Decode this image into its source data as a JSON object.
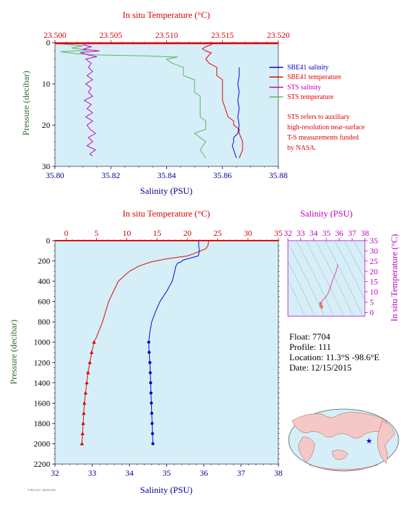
{
  "colors": {
    "plot_bg": "#d5eef8",
    "temp_axis": "#d40000",
    "salinity_axis": "#00008c",
    "pressure_axis": "#2f6b2f",
    "sbe_salinity": "#0000c8",
    "sbe_temperature": "#e00000",
    "sts_salinity": "#c000c0",
    "sts_temperature": "#5ab45a",
    "ts_axis": "#c000c0"
  },
  "chart_data": [
    {
      "type": "line",
      "panel": "near-surface",
      "top_axis": {
        "label": "In situ Temperature (°C)",
        "ticks": [
          "23.500",
          "23.505",
          "23.510",
          "23.515",
          "23.520"
        ],
        "range": [
          23.5,
          23.52
        ]
      },
      "bottom_axis": {
        "label": "Salinity (PSU)",
        "ticks": [
          "35.80",
          "35.82",
          "35.84",
          "35.86",
          "35.88"
        ],
        "range": [
          35.8,
          35.88
        ]
      },
      "y_axis": {
        "label": "Pressure (decibar)",
        "ticks": [
          "0",
          "10",
          "20",
          "30"
        ],
        "range": [
          0,
          30
        ],
        "inverted": true
      },
      "legend_position": "right",
      "series": [
        {
          "name": "SBE41 salinity",
          "axis": "salinity",
          "points": [
            [
              35.866,
              6
            ],
            [
              35.866,
              8
            ],
            [
              35.8655,
              10
            ],
            [
              35.866,
              12
            ],
            [
              35.8655,
              14
            ],
            [
              35.866,
              16
            ],
            [
              35.8655,
              18
            ],
            [
              35.866,
              20
            ],
            [
              35.8655,
              22
            ],
            [
              35.864,
              23
            ],
            [
              35.864,
              24
            ],
            [
              35.8635,
              25
            ],
            [
              35.864,
              26
            ],
            [
              35.8645,
              27
            ],
            [
              35.865,
              28
            ]
          ]
        },
        {
          "name": "SBE41 temperature",
          "axis": "temperature",
          "points": [
            [
              23.5141,
              0
            ],
            [
              23.5141,
              0.2
            ],
            [
              23.514,
              0.5
            ],
            [
              23.5135,
              1
            ],
            [
              23.5132,
              1.5
            ],
            [
              23.5135,
              2
            ],
            [
              23.514,
              2.5
            ],
            [
              23.5138,
              3
            ],
            [
              23.5135,
              4
            ],
            [
              23.5138,
              5
            ],
            [
              23.5145,
              6
            ],
            [
              23.5145,
              8
            ],
            [
              23.515,
              9
            ],
            [
              23.515,
              14
            ],
            [
              23.5155,
              18
            ],
            [
              23.516,
              19
            ],
            [
              23.516,
              20
            ],
            [
              23.5165,
              21
            ],
            [
              23.5165,
              22
            ],
            [
              23.5168,
              24
            ],
            [
              23.5168,
              26
            ],
            [
              23.5165,
              28
            ]
          ]
        },
        {
          "name": "STS salinity",
          "axis": "salinity",
          "points": [
            [
              35.81,
              0.5
            ],
            [
              35.813,
              1
            ],
            [
              35.81,
              1.6
            ],
            [
              35.816,
              2
            ],
            [
              35.809,
              2.4
            ],
            [
              35.812,
              3
            ],
            [
              35.815,
              3.4
            ],
            [
              35.811,
              4
            ],
            [
              35.813,
              5
            ],
            [
              35.812,
              6
            ],
            [
              35.8135,
              7
            ],
            [
              35.8115,
              8
            ],
            [
              35.8135,
              9
            ],
            [
              35.811,
              10
            ],
            [
              35.813,
              11
            ],
            [
              35.812,
              12
            ],
            [
              35.8135,
              13
            ],
            [
              35.8105,
              14
            ],
            [
              35.813,
              15
            ],
            [
              35.8115,
              16
            ],
            [
              35.8135,
              17
            ],
            [
              35.811,
              18
            ],
            [
              35.8135,
              19
            ],
            [
              35.8115,
              20
            ],
            [
              35.8125,
              21
            ],
            [
              35.8145,
              22
            ],
            [
              35.812,
              23
            ],
            [
              35.8135,
              24
            ],
            [
              35.8115,
              25
            ],
            [
              35.8145,
              26
            ],
            [
              35.8125,
              27
            ],
            [
              35.8135,
              27.5
            ]
          ]
        },
        {
          "name": "STS temperature",
          "axis": "temperature",
          "points": [
            [
              23.5005,
              0.3
            ],
            [
              23.5025,
              0.8
            ],
            [
              23.5015,
              1.3
            ],
            [
              23.503,
              1.8
            ],
            [
              23.5005,
              2.2
            ],
            [
              23.502,
              2.7
            ],
            [
              23.504,
              3
            ],
            [
              23.508,
              3.2
            ],
            [
              23.511,
              3.5
            ],
            [
              23.51,
              4
            ],
            [
              23.5105,
              5
            ],
            [
              23.5115,
              6
            ],
            [
              23.5115,
              8
            ],
            [
              23.5125,
              9
            ],
            [
              23.5125,
              12
            ],
            [
              23.513,
              13
            ],
            [
              23.513,
              18
            ],
            [
              23.5135,
              19
            ],
            [
              23.5135,
              21
            ],
            [
              23.5125,
              22
            ],
            [
              23.5135,
              24
            ],
            [
              23.513,
              26
            ],
            [
              23.5135,
              28
            ]
          ]
        }
      ]
    },
    {
      "type": "line",
      "panel": "full-profile",
      "top_axis": {
        "label": "In situ Temperature (°C)",
        "ticks": [
          "0",
          "5",
          "10",
          "15",
          "20",
          "25",
          "30",
          "35"
        ],
        "range": [
          -1.85,
          35
        ]
      },
      "bottom_axis": {
        "label": "Salinity (PSU)",
        "ticks": [
          "32",
          "33",
          "34",
          "35",
          "36",
          "37",
          "38"
        ],
        "range": [
          32,
          38
        ]
      },
      "y_axis": {
        "label": "Pressure (decibar)",
        "ticks": [
          "0",
          "200",
          "400",
          "600",
          "800",
          "1000",
          "1200",
          "1400",
          "1600",
          "1800",
          "2000",
          "2200"
        ],
        "range": [
          0,
          2200
        ],
        "inverted": true
      },
      "series": [
        {
          "name": "temperature",
          "axis": "temperature",
          "points": [
            [
              23.5,
              0
            ],
            [
              23.4,
              50
            ],
            [
              23,
              80
            ],
            [
              21,
              130
            ],
            [
              20,
              150
            ],
            [
              16.5,
              180
            ],
            [
              14,
              210
            ],
            [
              12,
              250
            ],
            [
              10.5,
              300
            ],
            [
              9.5,
              350
            ],
            [
              8.6,
              400
            ],
            [
              7.8,
              500
            ],
            [
              7,
              600
            ],
            [
              6,
              800
            ],
            [
              5,
              950
            ],
            [
              4.6,
              1000
            ],
            [
              4.2,
              1100
            ],
            [
              3.9,
              1200
            ],
            [
              3.6,
              1300
            ],
            [
              3.4,
              1400
            ],
            [
              3.2,
              1500
            ],
            [
              3,
              1600
            ],
            [
              2.9,
              1700
            ],
            [
              2.8,
              1800
            ],
            [
              2.7,
              1900
            ],
            [
              2.6,
              2000
            ]
          ],
          "markers_from": 1000
        },
        {
          "name": "salinity",
          "axis": "salinity",
          "points": [
            [
              35.86,
              0
            ],
            [
              35.86,
              50
            ],
            [
              35.88,
              100
            ],
            [
              35.85,
              150
            ],
            [
              35.45,
              190
            ],
            [
              35.38,
              210
            ],
            [
              35.3,
              220
            ],
            [
              35.25,
              250
            ],
            [
              35.22,
              300
            ],
            [
              35.15,
              400
            ],
            [
              35.0,
              500
            ],
            [
              34.82,
              600
            ],
            [
              34.7,
              700
            ],
            [
              34.6,
              800
            ],
            [
              34.55,
              900
            ],
            [
              34.52,
              1000
            ],
            [
              34.53,
              1100
            ],
            [
              34.55,
              1200
            ],
            [
              34.56,
              1300
            ],
            [
              34.57,
              1400
            ],
            [
              34.58,
              1500
            ],
            [
              34.59,
              1600
            ],
            [
              34.6,
              1700
            ],
            [
              34.61,
              1800
            ],
            [
              34.62,
              1900
            ],
            [
              34.63,
              2000
            ]
          ],
          "markers_from": 1000
        }
      ]
    },
    {
      "type": "scatter",
      "panel": "ts-diagram",
      "top_axis": {
        "label": "Salinity (PSU)",
        "ticks": [
          "32",
          "33",
          "34",
          "35",
          "36",
          "37",
          "38"
        ],
        "range": [
          32,
          38
        ]
      },
      "right_axis": {
        "label": "In situ Temperature (°C)",
        "ticks": [
          "0",
          "5",
          "10",
          "15",
          "20",
          "25",
          "30",
          "35"
        ],
        "range": [
          -1.85,
          35
        ]
      },
      "series": [
        {
          "name": "profile",
          "points": [
            [
              35.86,
              23.5
            ],
            [
              35.88,
              22.5
            ],
            [
              35.7,
              19
            ],
            [
              35.5,
              16
            ],
            [
              35.3,
              12
            ],
            [
              35.1,
              9
            ],
            [
              34.9,
              7
            ],
            [
              34.7,
              6
            ],
            [
              34.6,
              5
            ],
            [
              34.55,
              4.5
            ],
            [
              34.55,
              3.5
            ],
            [
              34.6,
              3
            ],
            [
              34.63,
              2.6
            ]
          ]
        }
      ]
    }
  ],
  "legend": {
    "items": [
      {
        "label": "SBE41 salinity",
        "color": "#0000c8"
      },
      {
        "label": "SBE41 temperature",
        "color": "#e00000"
      },
      {
        "label": "STS salinity",
        "color": "#c000c0"
      },
      {
        "label": "STS temperature",
        "color": "#5ab45a"
      }
    ],
    "note": [
      "STS refers to auxiliary",
      "high-resolution near-surface",
      "T-S measurements funded",
      "by NASA."
    ]
  },
  "info": {
    "float": "Float: 7704",
    "profile": "Profile: 111",
    "location": "Location: 11.3°S -98.6°E",
    "date": "Date: 12/15/2015"
  },
  "footer": {
    "id": "7704/111 20151215"
  }
}
